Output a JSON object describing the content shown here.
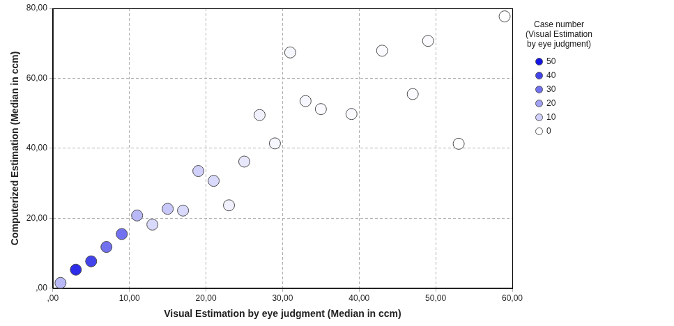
{
  "chart_data": {
    "type": "scatter",
    "x_label": "Visual Estimation by eye judgment (Median in ccm)",
    "y_label": "Computerized Estimation (Median in ccm)",
    "x": [
      1,
      3,
      5,
      7,
      9,
      11,
      13,
      15,
      17,
      19,
      21,
      23,
      25,
      27,
      29,
      31,
      33,
      35,
      39,
      43,
      47,
      49,
      53,
      59
    ],
    "values": [
      1.5,
      5.3,
      7.7,
      11.8,
      15.5,
      20.8,
      18.2,
      22.7,
      22.2,
      33.5,
      30.7,
      23.7,
      36.2,
      49.5,
      41.4,
      67.4,
      53.5,
      51.2,
      49.8,
      67.9,
      55.5,
      70.7,
      41.3,
      77.7
    ],
    "case_numbers": [
      15,
      45,
      40,
      30,
      30,
      15,
      8,
      12,
      8,
      10,
      8,
      3,
      5,
      3,
      2,
      2,
      2,
      1,
      1,
      1,
      1,
      1,
      0,
      0
    ],
    "color_scale": {
      "title": "Case number (Visual Estimation by eye judgment)",
      "range": [
        0,
        50
      ],
      "ticks": [
        50,
        40,
        30,
        20,
        10,
        0
      ],
      "colors": [
        "#ffffff",
        "#1414e6"
      ]
    },
    "marker": "circle",
    "xlim": [
      0,
      60
    ],
    "xticks": [
      {
        "value": 0,
        "label": ",00"
      },
      {
        "value": 10,
        "label": "10,00"
      },
      {
        "value": 20,
        "label": "20,00"
      },
      {
        "value": 30,
        "label": "30,00"
      },
      {
        "value": 40,
        "label": "40,00"
      },
      {
        "value": 50,
        "label": "50,00"
      },
      {
        "value": 60,
        "label": "60,00"
      }
    ],
    "ylim": [
      0,
      80
    ],
    "yticks": [
      {
        "value": 0,
        "label": ",00"
      },
      {
        "value": 20,
        "label": "20,00"
      },
      {
        "value": 40,
        "label": "40,00"
      },
      {
        "value": 60,
        "label": "60,00"
      },
      {
        "value": 80,
        "label": "80,00"
      }
    ],
    "grid": true
  }
}
